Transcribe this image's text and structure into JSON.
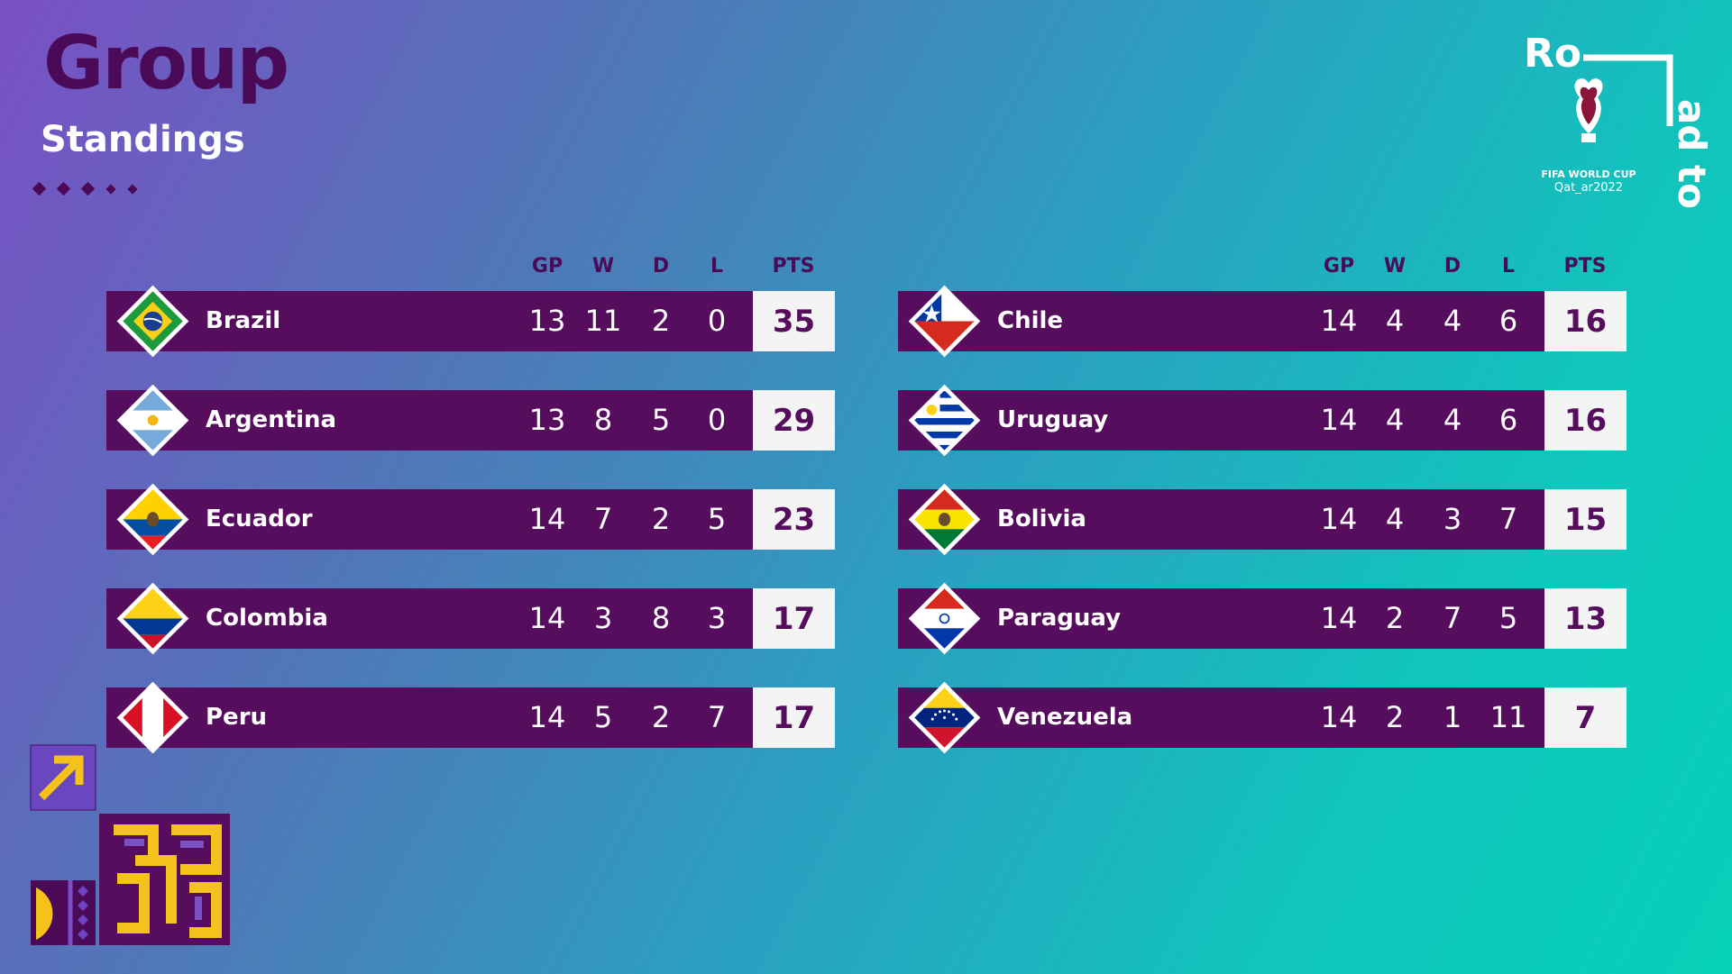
{
  "header": {
    "title": "Group",
    "subtitle": "Standings"
  },
  "logo": {
    "word_top": "Ro",
    "word_side": "ad to",
    "brand_line1": "FIFA WORLD CUP",
    "brand_line2": "Qat_ar2022"
  },
  "columns": {
    "gp": "GP",
    "w": "W",
    "d": "D",
    "l": "L",
    "pts": "PTS"
  },
  "left_table": [
    {
      "team": "Brazil",
      "gp": "13",
      "w": "11",
      "d": "2",
      "l": "0",
      "pts": "35"
    },
    {
      "team": "Argentina",
      "gp": "13",
      "w": "8",
      "d": "5",
      "l": "0",
      "pts": "29"
    },
    {
      "team": "Ecuador",
      "gp": "14",
      "w": "7",
      "d": "2",
      "l": "5",
      "pts": "23"
    },
    {
      "team": "Colombia",
      "gp": "14",
      "w": "3",
      "d": "8",
      "l": "3",
      "pts": "17"
    },
    {
      "team": "Peru",
      "gp": "14",
      "w": "5",
      "d": "2",
      "l": "7",
      "pts": "17"
    }
  ],
  "right_table": [
    {
      "team": "Chile",
      "gp": "14",
      "w": "4",
      "d": "4",
      "l": "6",
      "pts": "16"
    },
    {
      "team": "Uruguay",
      "gp": "14",
      "w": "4",
      "d": "4",
      "l": "6",
      "pts": "16"
    },
    {
      "team": "Bolivia",
      "gp": "14",
      "w": "4",
      "d": "3",
      "l": "7",
      "pts": "15"
    },
    {
      "team": "Paraguay",
      "gp": "14",
      "w": "2",
      "d": "7",
      "l": "5",
      "pts": "13"
    },
    {
      "team": "Venezuela",
      "gp": "14",
      "w": "2",
      "d": "1",
      "l": "11",
      "pts": "7"
    }
  ],
  "colors": {
    "row_bg": "#560d5e",
    "pts_bg": "#f5f4f4",
    "title": "#4b0a58",
    "accent_yellow": "#f5c21b"
  }
}
